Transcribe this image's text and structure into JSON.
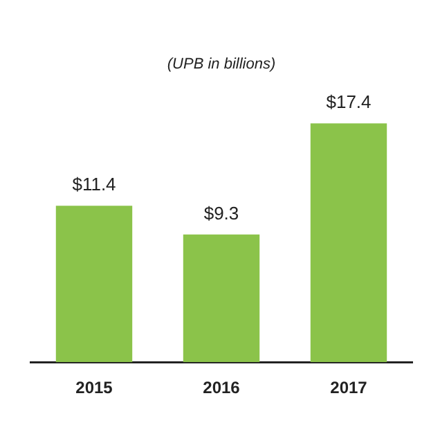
{
  "chart_data": {
    "type": "bar",
    "title": "(UPB in billions)",
    "categories": [
      "2015",
      "2016",
      "2017"
    ],
    "values": [
      11.4,
      9.3,
      17.4
    ],
    "value_labels": [
      "$11.4",
      "$9.3",
      "$17.4"
    ],
    "color": "#8bc34a",
    "grid": false,
    "legend": false
  }
}
